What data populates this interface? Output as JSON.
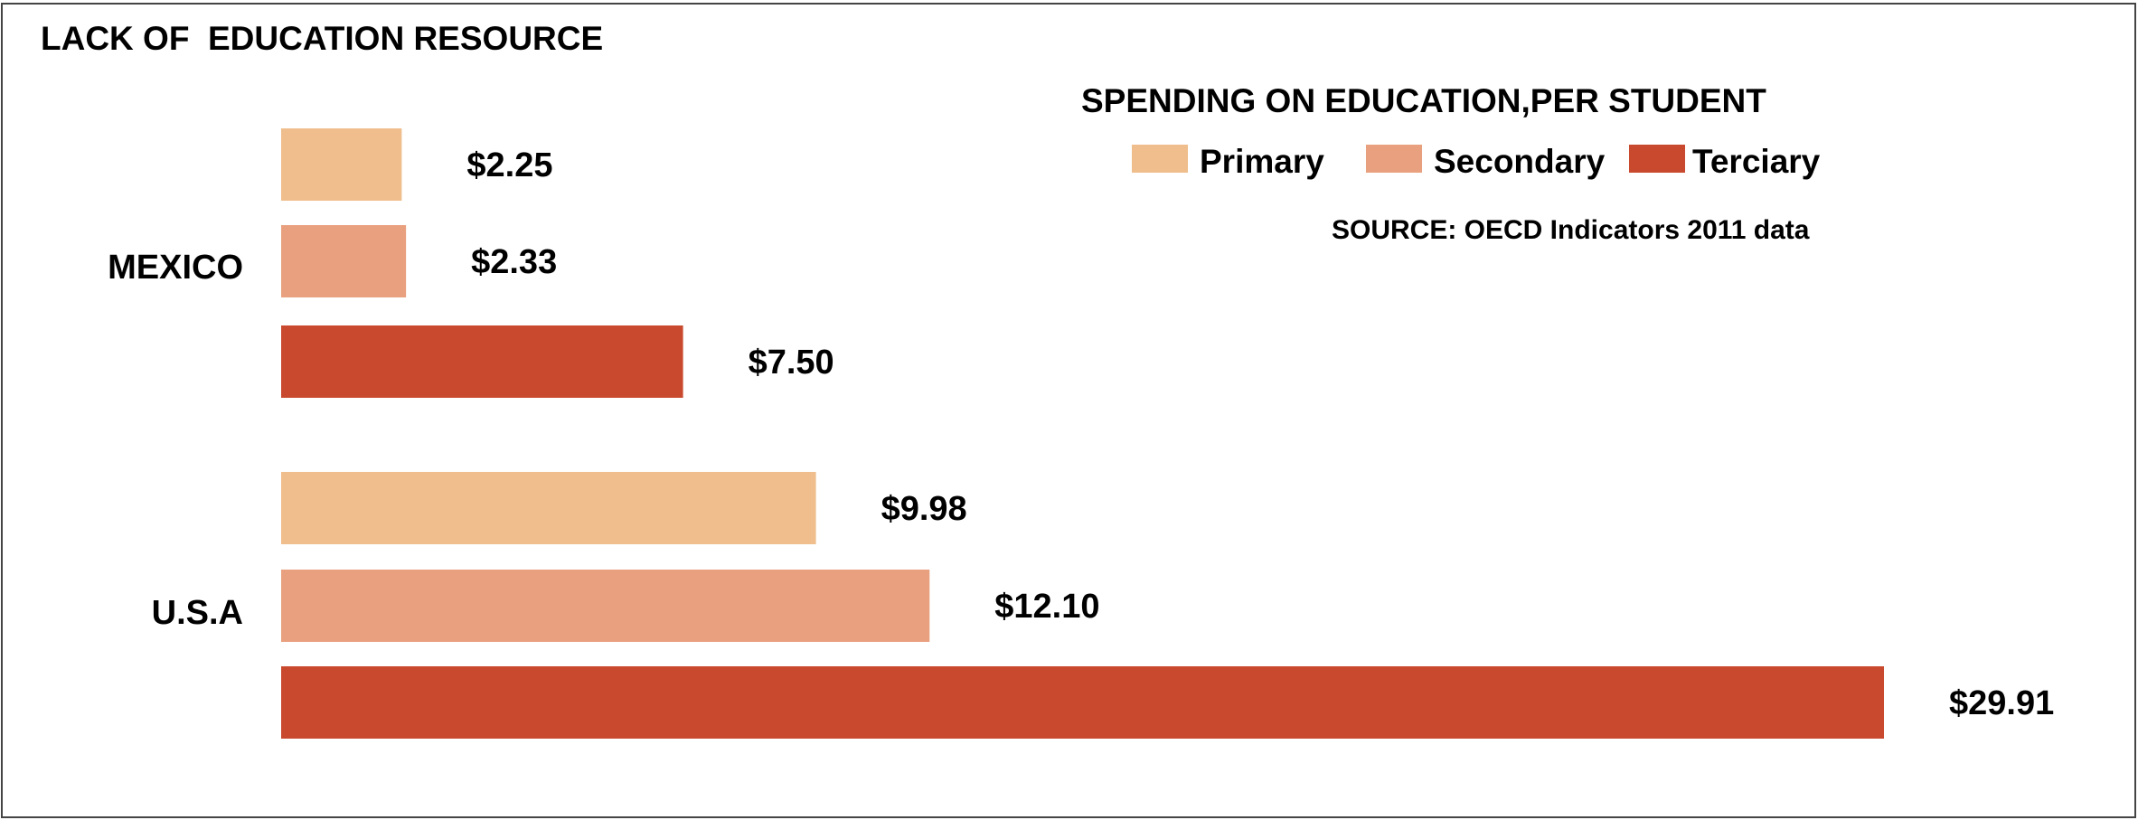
{
  "chart_data": {
    "type": "bar",
    "orientation": "horizontal",
    "title": "LACK OF  EDUCATION RESOURCE",
    "subtitle": "SPENDING ON EDUCATION,PER STUDENT",
    "source": "SOURCE: OECD Indicators 2011 data",
    "categories": [
      "MEXICO",
      "U.S.A"
    ],
    "series": [
      {
        "name": "Primary",
        "color": "#EFBE8C",
        "values": [
          2.25,
          9.98
        ],
        "labels": [
          "$2.25",
          "$9.98"
        ]
      },
      {
        "name": "Secondary",
        "color": "#E9A07F",
        "values": [
          2.33,
          12.1
        ],
        "labels": [
          "$2.33",
          "$12.10"
        ]
      },
      {
        "name": "Terciary",
        "color": "#C8492D",
        "values": [
          7.5,
          29.91
        ],
        "labels": [
          "$7.50",
          "$29.91"
        ]
      }
    ],
    "xlim": [
      0,
      29.91
    ],
    "grid": false,
    "legend_position": "top-right"
  }
}
